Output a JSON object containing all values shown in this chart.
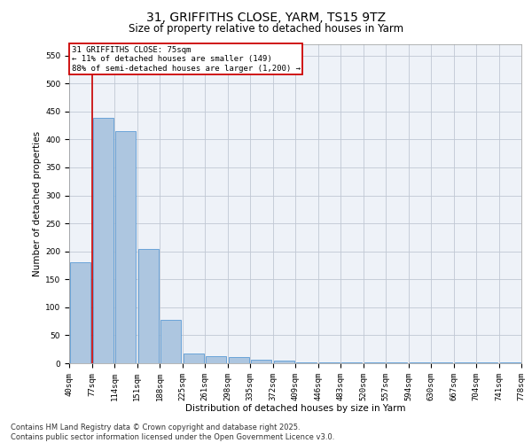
{
  "title": "31, GRIFFITHS CLOSE, YARM, TS15 9TZ",
  "subtitle": "Size of property relative to detached houses in Yarm",
  "xlabel": "Distribution of detached houses by size in Yarm",
  "ylabel": "Number of detached properties",
  "bin_labels": [
    "40sqm",
    "77sqm",
    "114sqm",
    "151sqm",
    "188sqm",
    "225sqm",
    "261sqm",
    "298sqm",
    "335sqm",
    "372sqm",
    "409sqm",
    "446sqm",
    "483sqm",
    "520sqm",
    "557sqm",
    "594sqm",
    "630sqm",
    "667sqm",
    "704sqm",
    "741sqm",
    "778sqm"
  ],
  "bar_values": [
    180,
    438,
    415,
    205,
    78,
    18,
    13,
    11,
    6,
    4,
    2,
    1,
    1,
    1,
    1,
    1,
    1,
    1,
    1,
    2
  ],
  "bar_color": "#adc6e0",
  "bar_edge_color": "#5b9bd5",
  "marker_line_color": "#cc0000",
  "annotation_text": "31 GRIFFITHS CLOSE: 75sqm\n← 11% of detached houses are smaller (149)\n88% of semi-detached houses are larger (1,200) →",
  "annotation_box_color": "#ffffff",
  "annotation_border_color": "#cc0000",
  "ylim": [
    0,
    570
  ],
  "yticks": [
    0,
    50,
    100,
    150,
    200,
    250,
    300,
    350,
    400,
    450,
    500,
    550
  ],
  "bg_color": "#eef2f8",
  "footnote": "Contains HM Land Registry data © Crown copyright and database right 2025.\nContains public sector information licensed under the Open Government Licence v3.0.",
  "title_fontsize": 10,
  "subtitle_fontsize": 8.5,
  "xlabel_fontsize": 7.5,
  "ylabel_fontsize": 7.5,
  "tick_fontsize": 6.5,
  "footnote_fontsize": 6.0
}
